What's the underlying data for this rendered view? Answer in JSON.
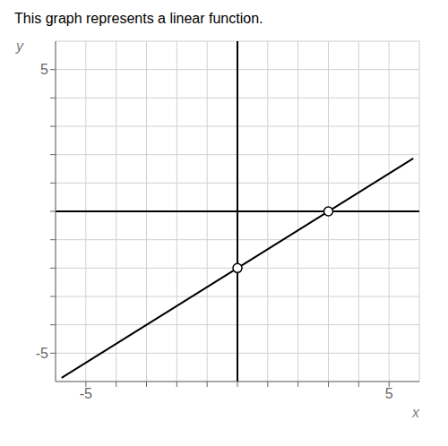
{
  "chart_data": {
    "type": "line",
    "title": "This graph represents a linear function.",
    "x_label": "x",
    "y_label": "y",
    "xlim": [
      -6,
      6
    ],
    "ylim": [
      -6,
      6
    ],
    "xticks": [
      -5,
      {
        "value": -4,
        "label": null
      },
      {
        "value": -3,
        "label": null
      },
      {
        "value": -2,
        "label": null
      },
      {
        "value": -1,
        "label": null
      },
      {
        "value": 0,
        "label": null
      },
      {
        "value": 1,
        "label": null
      },
      {
        "value": 2,
        "label": null
      },
      {
        "value": 3,
        "label": null
      },
      {
        "value": 4,
        "label": null
      },
      5
    ],
    "yticks": [
      -5,
      {
        "value": -4,
        "label": null
      },
      {
        "value": -3,
        "label": null
      },
      {
        "value": -2,
        "label": null
      },
      {
        "value": -1,
        "label": null
      },
      {
        "value": 0,
        "label": null
      },
      {
        "value": 1,
        "label": null
      },
      {
        "value": 2,
        "label": null
      },
      {
        "value": 3,
        "label": null
      },
      {
        "value": 4,
        "label": null
      },
      5
    ],
    "grid": true,
    "series": [
      {
        "type": "line",
        "color": "#000000",
        "x": [
          -5.8,
          5.8
        ],
        "values": [
          -5.86686,
          1.86686
        ]
      },
      {
        "type": "scatter",
        "marker": "circle",
        "color": "#000000",
        "x": [
          0,
          3
        ],
        "values": [
          -2,
          0
        ]
      }
    ]
  }
}
